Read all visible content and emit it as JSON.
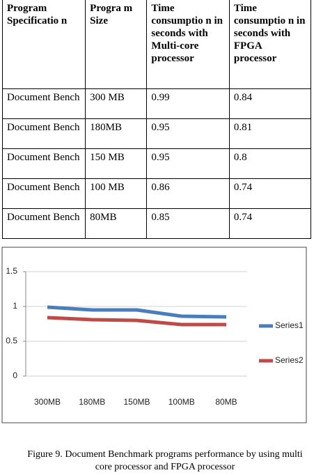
{
  "table": {
    "header": [
      "Program Specificatio n",
      "Progra m Size",
      "Time consumptio n in seconds with Multi-core processor",
      "Time consumptio n in seconds with FPGA processor"
    ],
    "rows": [
      [
        "Document Bench",
        "300 MB",
        "0.99",
        "0.84"
      ],
      [
        "Document Bench",
        "180MB",
        "0.95",
        "0.81"
      ],
      [
        "Document Bench",
        "150 MB",
        "0.95",
        "0.8"
      ],
      [
        "Document Bench",
        "100 MB",
        "0.86",
        "0.74"
      ],
      [
        "Document Bench",
        "80MB",
        "0.85",
        "0.74"
      ]
    ]
  },
  "chart_data": {
    "type": "line",
    "categories": [
      "300MB",
      "180MB",
      "150MB",
      "100MB",
      "80MB"
    ],
    "series": [
      {
        "name": "Series1",
        "color": "#4a7ebb",
        "values": [
          0.99,
          0.95,
          0.95,
          0.86,
          0.85
        ]
      },
      {
        "name": "Series2",
        "color": "#be4b48",
        "values": [
          0.84,
          0.81,
          0.8,
          0.74,
          0.74
        ]
      }
    ],
    "ylim": [
      0,
      1.5
    ],
    "yticks": [
      0,
      0.5,
      1,
      1.5
    ],
    "grid": true,
    "legend": "right"
  },
  "caption": [
    "Figure  9. Document Benchmark programs performance by using multi",
    "core processor and FPGA processor"
  ]
}
